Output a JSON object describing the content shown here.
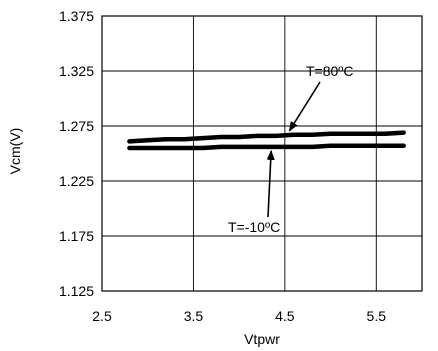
{
  "chart_data": {
    "type": "line",
    "title": "",
    "xlabel": "Vtpwr",
    "ylabel": "Vcm(V)",
    "xlim": [
      2.5,
      6.0
    ],
    "ylim": [
      1.125,
      1.375
    ],
    "xticks": [
      2.5,
      3.5,
      4.5,
      5.5
    ],
    "xtick_labels": [
      "2.5",
      "3.5",
      "4.5",
      "5.5"
    ],
    "yticks": [
      1.375,
      1.325,
      1.275,
      1.225,
      1.175,
      1.125
    ],
    "ytick_labels": [
      "1.375",
      "1.325",
      "1.275",
      "1.225",
      "1.175",
      "1.125"
    ],
    "grid": true,
    "legend": "none",
    "series": [
      {
        "color": "#000000",
        "x": [
          2.8,
          3.0,
          3.2,
          3.4,
          3.6,
          3.8,
          4.0,
          4.2,
          4.4,
          4.6,
          4.8,
          5.0,
          5.2,
          5.4,
          5.6,
          5.8
        ],
        "y": [
          1.261,
          1.262,
          1.263,
          1.263,
          1.264,
          1.265,
          1.265,
          1.266,
          1.266,
          1.267,
          1.267,
          1.268,
          1.268,
          1.268,
          1.268,
          1.269
        ]
      },
      {
        "color": "#000000",
        "x": [
          2.8,
          3.0,
          3.2,
          3.4,
          3.6,
          3.8,
          4.0,
          4.2,
          4.4,
          4.6,
          4.8,
          5.0,
          5.2,
          5.4,
          5.6,
          5.8
        ],
        "y": [
          1.255,
          1.255,
          1.255,
          1.255,
          1.255,
          1.256,
          1.256,
          1.256,
          1.256,
          1.256,
          1.256,
          1.257,
          1.257,
          1.257,
          1.257,
          1.257
        ]
      }
    ],
    "annotations": [
      {
        "text": "T=80ºC",
        "points_to_x": 4.55,
        "points_to_y": 1.267
      },
      {
        "text": "T=-10ºC",
        "points_to_x": 4.35,
        "points_to_y": 1.256
      }
    ]
  }
}
